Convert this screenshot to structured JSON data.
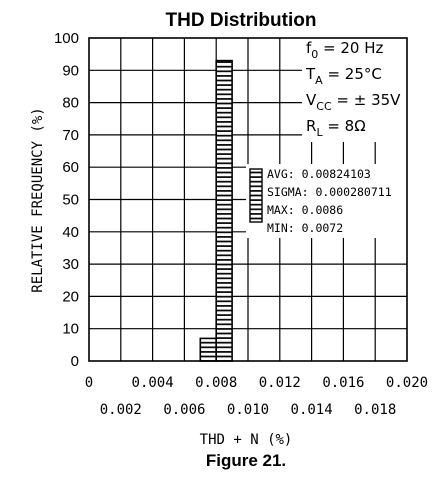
{
  "chart_data": {
    "type": "bar",
    "title": "THD Distribution",
    "xlabel": "THD + N (%)",
    "ylabel": "RELATIVE FREQUENCY (%)",
    "xlim": [
      0,
      0.02
    ],
    "ylim": [
      0,
      100
    ],
    "grid": true,
    "x_ticks_row1": [
      "0",
      "0.004",
      "0.008",
      "0.012",
      "0.016",
      "0.020"
    ],
    "x_ticks_row2": [
      "0.002",
      "0.006",
      "0.010",
      "0.014",
      "0.018"
    ],
    "y_ticks": [
      "0",
      "10",
      "20",
      "30",
      "40",
      "50",
      "60",
      "70",
      "80",
      "90",
      "100"
    ],
    "bins": [
      {
        "x0": 0.007,
        "x1": 0.008,
        "value": 7
      },
      {
        "x0": 0.008,
        "x1": 0.009,
        "value": 93
      }
    ],
    "conditions": {
      "f0": {
        "base": "f",
        "sub": "0",
        "rest": " = 20 Hz"
      },
      "ta": {
        "base": "T",
        "sub": "A",
        "rest": " = 25°C"
      },
      "vcc": {
        "base": "V",
        "sub": "CC",
        "rest": " = ± 35V"
      },
      "rl": {
        "base": "R",
        "sub": "L",
        "rest": " = 8Ω"
      }
    },
    "legend_stats": [
      "AVG: 0.00824103",
      "SIGMA: 0.000280711",
      "MAX: 0.0086",
      "MIN: 0.0072"
    ]
  },
  "figure_caption": "Figure 21."
}
